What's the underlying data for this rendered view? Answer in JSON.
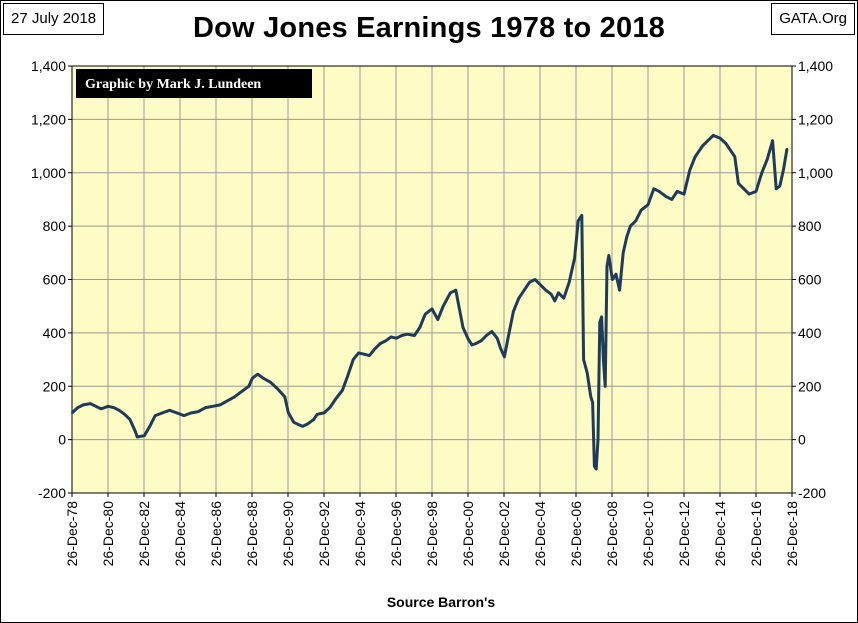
{
  "header": {
    "date": "27 July 2018",
    "source_site": "GATA.Org",
    "title": "Dow Jones Earnings 1978 to 2018"
  },
  "colors": {
    "plot_background": "#fdfcc4",
    "series_line": "#1f3b5a",
    "grid": "#9a9a9a",
    "credit_background": "#000000"
  },
  "chart_data": {
    "type": "line",
    "title": "Dow Jones Earnings 1978 to 2018",
    "xlabel": "Source Barron's",
    "ylabel": "",
    "credit": "Graphic by Mark J. Lundeen",
    "ylim": [
      -200,
      1400
    ],
    "yticks": [
      -200,
      0,
      200,
      400,
      600,
      800,
      1000,
      1200,
      1400
    ],
    "ytick_labels": [
      "-200",
      "0",
      "200",
      "400",
      "600",
      "800",
      "1,000",
      "1,200",
      "1,400"
    ],
    "xlim": [
      1978.98,
      2018.98
    ],
    "xticks": [
      1978.98,
      1980.98,
      1982.98,
      1984.98,
      1986.98,
      1988.98,
      1990.98,
      1992.98,
      1994.98,
      1996.98,
      1998.98,
      2000.98,
      2002.98,
      2004.98,
      2006.98,
      2008.98,
      2010.98,
      2012.98,
      2014.98,
      2016.98,
      2018.98
    ],
    "xtick_labels": [
      "26-Dec-78",
      "26-Dec-80",
      "26-Dec-82",
      "26-Dec-84",
      "26-Dec-86",
      "26-Dec-88",
      "26-Dec-90",
      "26-Dec-92",
      "26-Dec-94",
      "26-Dec-96",
      "26-Dec-98",
      "26-Dec-00",
      "26-Dec-02",
      "26-Dec-04",
      "26-Dec-06",
      "26-Dec-08",
      "26-Dec-10",
      "26-Dec-12",
      "26-Dec-14",
      "26-Dec-16",
      "26-Dec-18"
    ],
    "grid": true,
    "series": [
      {
        "name": "",
        "x": [
          1978.98,
          1979.3,
          1979.6,
          1980.0,
          1980.3,
          1980.6,
          1980.98,
          1981.3,
          1981.6,
          1981.9,
          1982.2,
          1982.5,
          1982.6,
          1983.0,
          1983.3,
          1983.6,
          1984.0,
          1984.4,
          1984.8,
          1985.2,
          1985.6,
          1986.0,
          1986.4,
          1986.8,
          1987.2,
          1987.6,
          1988.0,
          1988.4,
          1988.8,
          1989.0,
          1989.3,
          1989.6,
          1990.0,
          1990.4,
          1990.8,
          1991.0,
          1991.3,
          1991.6,
          1991.8,
          1992.1,
          1992.4,
          1992.6,
          1992.98,
          1993.3,
          1993.6,
          1994.0,
          1994.3,
          1994.6,
          1994.9,
          1995.2,
          1995.5,
          1995.8,
          1996.1,
          1996.4,
          1996.7,
          1997.0,
          1997.3,
          1997.6,
          1998.0,
          1998.3,
          1998.6,
          1998.98,
          1999.3,
          1999.6,
          2000.0,
          2000.3,
          2000.5,
          2000.7,
          2001.0,
          2001.2,
          2001.4,
          2001.7,
          2002.0,
          2002.3,
          2002.6,
          2002.8,
          2003.0,
          2003.2,
          2003.5,
          2003.8,
          2004.1,
          2004.4,
          2004.7,
          2005.0,
          2005.3,
          2005.6,
          2005.8,
          2006.0,
          2006.3,
          2006.6,
          2006.9,
          2007.1,
          2007.3,
          2007.4,
          2007.6,
          2007.8,
          2007.9,
          2008.0,
          2008.1,
          2008.2,
          2008.3,
          2008.4,
          2008.5,
          2008.6,
          2008.7,
          2008.8,
          2009.0,
          2009.2,
          2009.4,
          2009.6,
          2009.8,
          2010.0,
          2010.3,
          2010.6,
          2010.98,
          2011.3,
          2011.6,
          2012.0,
          2012.3,
          2012.6,
          2012.98,
          2013.3,
          2013.6,
          2014.0,
          2014.3,
          2014.6,
          2014.98,
          2015.3,
          2015.6,
          2015.8,
          2016.0,
          2016.3,
          2016.6,
          2016.98,
          2017.3,
          2017.6,
          2017.9,
          2018.1,
          2018.3,
          2018.5,
          2018.7
        ],
        "y": [
          100,
          120,
          130,
          135,
          125,
          115,
          125,
          120,
          110,
          95,
          75,
          30,
          10,
          15,
          50,
          90,
          100,
          110,
          100,
          90,
          100,
          105,
          120,
          125,
          130,
          145,
          160,
          180,
          200,
          230,
          245,
          230,
          215,
          190,
          160,
          100,
          65,
          55,
          50,
          60,
          75,
          95,
          100,
          120,
          150,
          185,
          240,
          300,
          325,
          320,
          315,
          340,
          360,
          370,
          385,
          380,
          390,
          395,
          390,
          420,
          470,
          490,
          450,
          500,
          550,
          560,
          490,
          420,
          375,
          355,
          360,
          370,
          390,
          405,
          380,
          340,
          310,
          380,
          480,
          530,
          560,
          590,
          600,
          580,
          560,
          545,
          520,
          550,
          530,
          590,
          680,
          820,
          840,
          300,
          250,
          160,
          140,
          -100,
          -110,
          0,
          440,
          460,
          300,
          200,
          650,
          690,
          600,
          620,
          560,
          700,
          760,
          800,
          820,
          860,
          880,
          940,
          930,
          910,
          900,
          930,
          920,
          1010,
          1060,
          1100,
          1120,
          1140,
          1130,
          1110,
          1080,
          1060,
          960,
          940,
          920,
          930,
          1000,
          1050,
          1120,
          940,
          950,
          1010,
          1090
        ]
      }
    ]
  }
}
